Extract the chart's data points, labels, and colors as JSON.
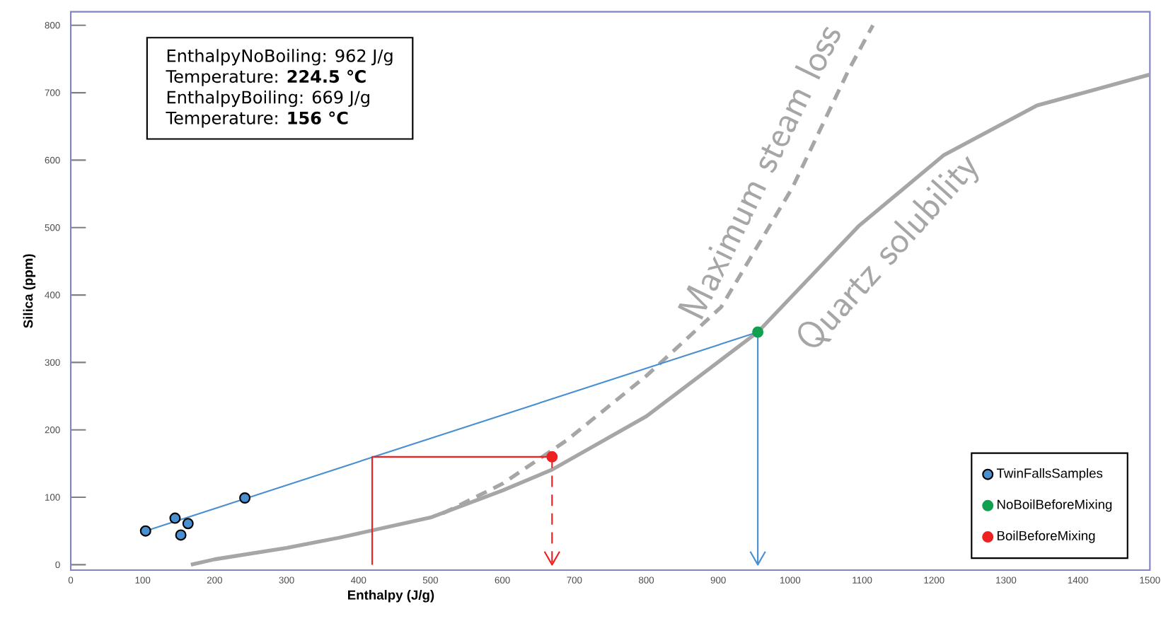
{
  "chart_data": {
    "type": "scatter",
    "xlabel": "Enthalpy (J/g)",
    "ylabel": "Silica (ppm)",
    "xlim": [
      0,
      1500
    ],
    "ylim": [
      -8,
      820
    ],
    "xticks": [
      0,
      100,
      200,
      300,
      400,
      500,
      600,
      700,
      800,
      900,
      1000,
      1100,
      1200,
      1300,
      1400,
      1500
    ],
    "yticks": [
      0,
      100,
      200,
      300,
      400,
      500,
      600,
      700,
      800
    ],
    "legend": "bottom right",
    "grid": false,
    "annotations": [
      "EnthalpyNoBoiling: 962 J/g",
      "Temperature: **224.5 ℃**",
      "EnthalpyBoiling: 669 J/g",
      "Temperature: **156 °C**"
    ],
    "series": [
      {
        "type": "line",
        "name": "Quartz solubility",
        "color": "#a6a6a6",
        "line_style": "solid",
        "marker": "none",
        "x": [
          167,
          200,
          300,
          373,
          500,
          600,
          669,
          800,
          955,
          1095,
          1213,
          1343,
          1500
        ],
        "values": [
          0,
          8,
          25,
          40,
          70,
          110,
          141,
          220,
          345,
          502,
          607,
          681,
          727
        ]
      },
      {
        "type": "line",
        "name": "Maximum steam loss",
        "color": "#a6a6a6",
        "line_style": "dashed",
        "marker": "none",
        "x": [
          517,
          600,
          690,
          800,
          904,
          1003,
          1081,
          1115
        ],
        "values": [
          76,
          120,
          185,
          280,
          382,
          559,
          733,
          800
        ]
      },
      {
        "type": "line",
        "color": "#4a90d0",
        "line_style": "solid",
        "marker": "none",
        "x": [
          104,
          955
        ],
        "values": [
          50,
          345
        ]
      },
      {
        "type": "line",
        "color": "#4a90d0",
        "line_style": "solid",
        "marker": "none",
        "x": [
          955,
          955
        ],
        "values": [
          345,
          0
        ]
      },
      {
        "type": "line",
        "color": "#ee2020",
        "line_style": "solid",
        "marker": "none",
        "x": [
          419,
          419,
          669
        ],
        "values": [
          0,
          160,
          160
        ]
      },
      {
        "type": "line",
        "color": "#ee2020",
        "line_style": "dashed",
        "marker": "none",
        "x": [
          669,
          669
        ],
        "values": [
          160,
          0
        ]
      },
      {
        "name": "TwinFallsSamples",
        "color": "#4a90d0",
        "marker": "circle",
        "x": [
          104,
          145,
          163,
          153,
          242
        ],
        "values": [
          50,
          69,
          61,
          44,
          99
        ]
      },
      {
        "name": "NoBoilBeforeMixing",
        "color": "#10a050",
        "marker": "circle",
        "x": [
          955
        ],
        "values": [
          345
        ]
      },
      {
        "name": "BoilBeforeMixing",
        "color": "#ee2020",
        "marker": "circle",
        "x": [
          669
        ],
        "values": [
          160
        ]
      }
    ]
  }
}
